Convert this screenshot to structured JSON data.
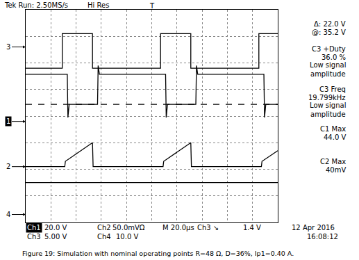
{
  "chart_data": {
    "type": "line",
    "title": "Tek Run: 2.50MS/s",
    "status": "Hi Res",
    "trigger": {
      "label": "T",
      "x": 100
    },
    "xlim": [
      0,
      200
    ],
    "xticks": [
      0,
      20,
      40,
      60,
      80,
      100,
      120,
      140,
      160,
      180,
      200
    ],
    "ylim": [
      -4,
      4
    ],
    "yticks": [
      -4,
      -3,
      -2,
      -1,
      0,
      1,
      2,
      3,
      4
    ],
    "grid": true,
    "tick_labels": false,
    "series": [
      {
        "name": "3",
        "color": "#000000",
        "ground": 2.6,
        "line_style": "solid",
        "x": [
          0,
          29,
          29,
          53,
          53,
          107,
          107,
          131,
          131,
          185,
          185,
          200
        ],
        "values": [
          1.8,
          1.8,
          3.1,
          3.1,
          1.8,
          1.8,
          3.1,
          3.1,
          1.8,
          1.8,
          3.1,
          3.1
        ]
      },
      {
        "name": "1",
        "color": "#000000",
        "ground": -0.2,
        "line_style": "solid",
        "x": [
          0,
          33,
          33.5,
          34.5,
          57,
          57.5,
          58.5,
          111,
          111.5,
          112.5,
          135,
          135.5,
          136.5,
          189,
          189.5,
          190.5,
          200
        ],
        "values": [
          1.57,
          1.57,
          -0.05,
          0.44,
          0.44,
          1.9,
          1.57,
          1.57,
          -0.05,
          0.44,
          0.44,
          1.9,
          1.57,
          1.57,
          -0.05,
          0.44,
          0.44
        ]
      },
      {
        "name": "2",
        "color": "#000000",
        "ground": -1.9,
        "line_style": "solid",
        "x": [
          0,
          31,
          31.5,
          53,
          53.5,
          109,
          109.5,
          131,
          131.5,
          187,
          187.5,
          200
        ],
        "values": [
          -1.9,
          -1.9,
          -1.7,
          -1.0,
          -1.9,
          -1.9,
          -1.7,
          -1.0,
          -1.9,
          -1.9,
          -1.7,
          -1.3
        ]
      },
      {
        "name": "4",
        "color": "#000000",
        "ground": -3.7,
        "line_style": "solid",
        "x": [
          0,
          200
        ],
        "values": [
          -2.5,
          -2.5
        ]
      },
      {
        "color": "#000000",
        "line_style": "dash",
        "x": [
          0,
          200
        ],
        "values": [
          0.44,
          0.44
        ]
      }
    ],
    "readouts": [
      [
        "Δ: 22.0 V",
        "@: 35.2 V"
      ],
      [
        "C3 +Duty",
        "36.0 %",
        "Low signal",
        "amplitude"
      ],
      [
        "C3 Freq",
        "19.799kHz",
        "Low signal",
        "amplitude"
      ],
      [
        "C1 Max",
        "44.0 V"
      ],
      [
        "C2 Max",
        "40mV"
      ]
    ],
    "footer": [
      [
        "Ch1",
        "20.0 V",
        "Ch2",
        "50.0mVΩ",
        "M 20.0μs",
        "Ch3 ↘",
        "1.4 V",
        "12 Apr 2016"
      ],
      [
        "Ch3",
        "5.00 V",
        "Ch4",
        "10.0 V",
        "16:08:12"
      ]
    ],
    "caption": "Figure 19: Simulation with nominal operating points R=48 Ω, D=36%, Ip1=0.40 A."
  }
}
